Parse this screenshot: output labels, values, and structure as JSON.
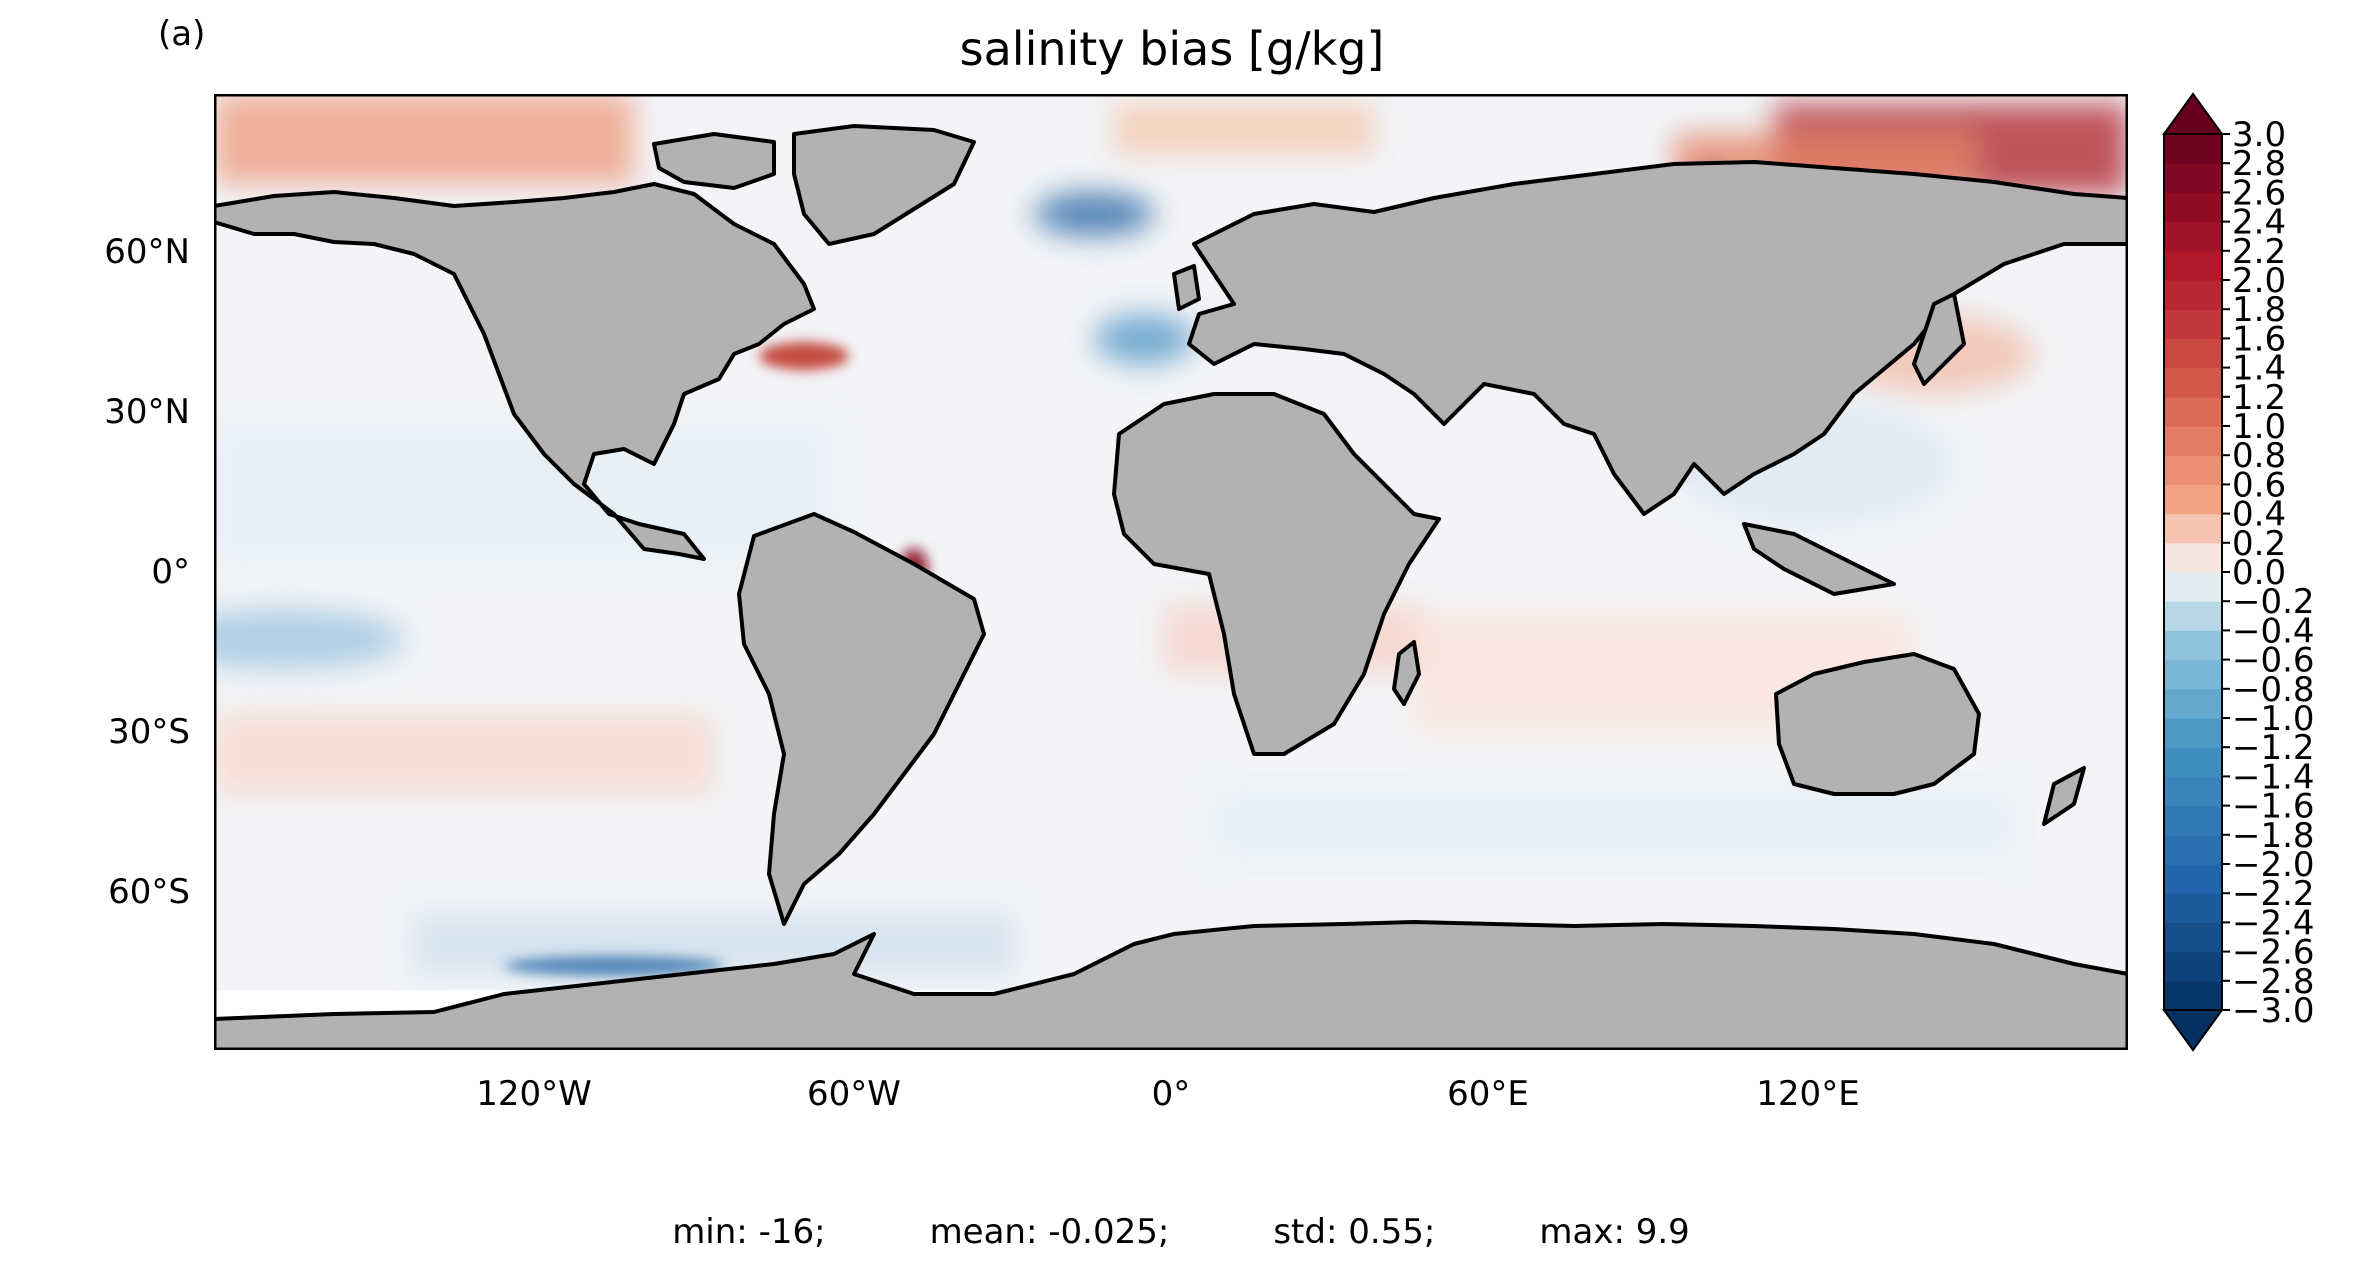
{
  "panel_label": "(a)",
  "title": "salinity bias [g/kg]",
  "colors": {
    "land": "#b2b2b2",
    "coast": "#000000",
    "positive_strong": "#8b0a1f",
    "positive_mid": "#e8826a",
    "neutral": "#f7f7f7",
    "negative_mid": "#6aa8d0",
    "negative_strong": "#0b3e7a"
  },
  "map": {
    "projection": "plate carree",
    "lat_ticks": [
      "60°N",
      "30°N",
      "0°",
      "30°S",
      "60°S"
    ],
    "lon_ticks": [
      "120°W",
      "60°W",
      "0°",
      "60°E",
      "120°E"
    ]
  },
  "colorbar": {
    "extend": "both",
    "tick_labels": [
      "3.0",
      "2.8",
      "2.6",
      "2.4",
      "2.2",
      "2.0",
      "1.8",
      "1.6",
      "1.4",
      "1.2",
      "1.0",
      "0.8",
      "0.6",
      "0.4",
      "0.2",
      "0.0",
      "−0.2",
      "−0.4",
      "−0.6",
      "−0.8",
      "−1.0",
      "−1.2",
      "−1.4",
      "−1.6",
      "−1.8",
      "−2.0",
      "−2.2",
      "−2.4",
      "−2.6",
      "−2.8",
      "−3.0"
    ],
    "min": -3.0,
    "max": 3.0,
    "step": 0.2
  },
  "stats": {
    "min": "min: -16;",
    "mean": "mean: -0.025;",
    "std": "std: 0.55;",
    "max": "max: 9.9"
  }
}
